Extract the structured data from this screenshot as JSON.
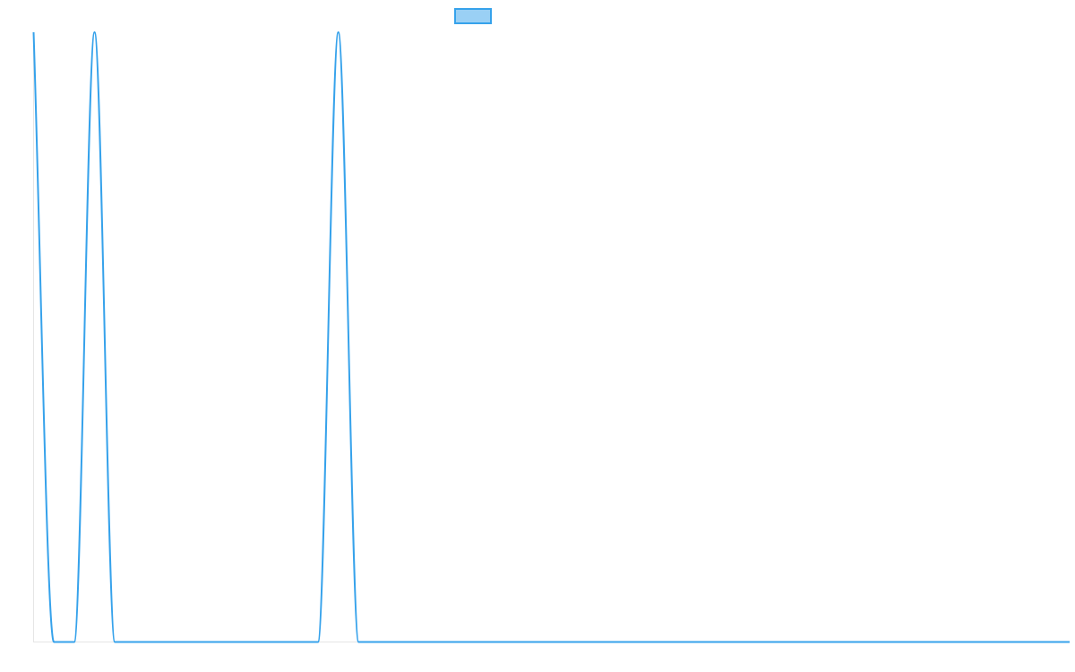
{
  "chart_data": {
    "type": "line",
    "title": "",
    "xlabel": "",
    "ylabel": "",
    "legend": {
      "position": "top-center",
      "entries": [
        ""
      ]
    },
    "grid": false,
    "x": [
      0,
      1,
      2,
      3,
      4,
      5,
      6,
      7,
      8,
      9,
      10,
      11,
      12,
      13,
      14,
      15,
      16,
      17,
      18,
      19,
      20,
      21,
      22,
      23,
      24,
      25,
      26,
      27,
      28,
      29,
      30,
      31,
      32,
      33,
      34,
      35,
      36,
      37,
      38,
      39,
      40,
      41,
      42,
      43,
      44,
      45,
      46,
      47,
      48,
      49,
      50,
      51
    ],
    "series": [
      {
        "name": "",
        "values": [
          1,
          0,
          0,
          1,
          0,
          0,
          0,
          0,
          0,
          0,
          0,
          0,
          0,
          0,
          0,
          1,
          0,
          0,
          0,
          0,
          0,
          0,
          0,
          0,
          0,
          0,
          0,
          0,
          0,
          0,
          0,
          0,
          0,
          0,
          0,
          0,
          0,
          0,
          0,
          0,
          0,
          0,
          0,
          0,
          0,
          0,
          0,
          0,
          0,
          0,
          0,
          0
        ]
      }
    ],
    "xlim": [
      0,
      51
    ],
    "ylim": [
      0,
      1
    ],
    "colors": {
      "line": "#36a2eb",
      "legend_fill": "#9ad0f5",
      "axis": "#e5e5e5"
    }
  }
}
